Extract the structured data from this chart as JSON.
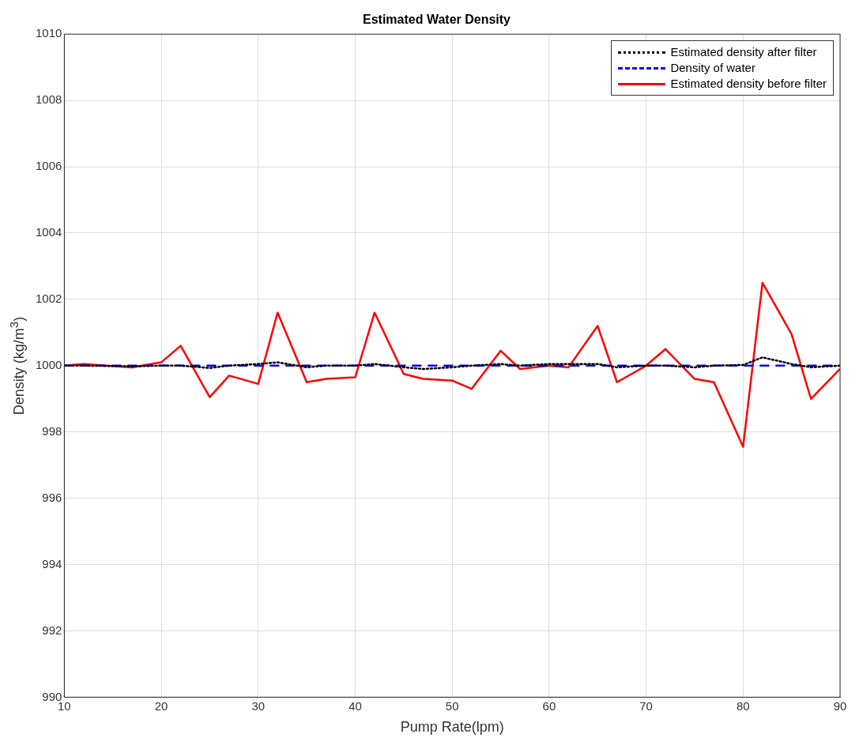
{
  "chart_data": {
    "type": "line",
    "title": "Estimated Water Density",
    "xlabel": "Pump Rate(lpm)",
    "ylabel": "Density (kg/m$^{3}$)",
    "xlim": [
      10,
      90
    ],
    "xticks": [
      10,
      20,
      30,
      40,
      50,
      60,
      70,
      80,
      90
    ],
    "ylim": [
      990,
      1010
    ],
    "yticks": [
      990,
      992,
      994,
      996,
      998,
      1000,
      1002,
      1004,
      1006,
      1008,
      1010
    ],
    "grid": true,
    "legend": "top right",
    "marker": "none",
    "series": [
      {
        "name": "Estimated density after filter",
        "color": "#000000",
        "line_style": "dotted",
        "x": [
          10,
          12,
          17,
          20,
          22,
          25,
          27,
          30,
          32,
          35,
          37,
          40,
          42,
          45,
          47,
          50,
          52,
          55,
          57,
          60,
          62,
          65,
          67,
          70,
          72,
          75,
          77,
          80,
          82,
          85,
          87,
          90
        ],
        "values": [
          1000,
          1000,
          999.98,
          1000,
          1000,
          999.93,
          1000,
          1000.05,
          1000.1,
          999.95,
          1000,
          1000,
          1000.05,
          999.95,
          999.9,
          999.95,
          1000,
          1000.05,
          1000,
          1000.05,
          1000.05,
          1000.05,
          999.95,
          1000,
          1000,
          999.95,
          1000,
          1000.02,
          1000.25,
          1000.05,
          999.95,
          1000
        ]
      },
      {
        "name": "Density of water",
        "color": "#0000ff",
        "line_style": "dashed",
        "x": [
          10,
          90
        ],
        "values": [
          1000,
          1000
        ]
      },
      {
        "name": "Estimated density before filter",
        "color": "#ff0000",
        "line_style": "solid",
        "x": [
          10,
          12,
          17,
          20,
          22,
          25,
          27,
          30,
          32,
          35,
          37,
          40,
          42,
          45,
          47,
          50,
          52,
          55,
          57,
          60,
          62,
          65,
          67,
          70,
          72,
          75,
          77,
          80,
          82,
          85,
          87,
          90
        ],
        "values": [
          1000,
          1000.05,
          999.95,
          1000.1,
          1000.6,
          999.05,
          999.7,
          999.45,
          1001.6,
          999.5,
          999.6,
          999.65,
          1001.6,
          999.75,
          999.6,
          999.55,
          999.3,
          1000.45,
          999.9,
          1000,
          999.95,
          1001.2,
          999.5,
          1000,
          1000.5,
          999.6,
          999.5,
          997.55,
          1002.5,
          1000.95,
          999,
          999.9
        ]
      }
    ]
  }
}
